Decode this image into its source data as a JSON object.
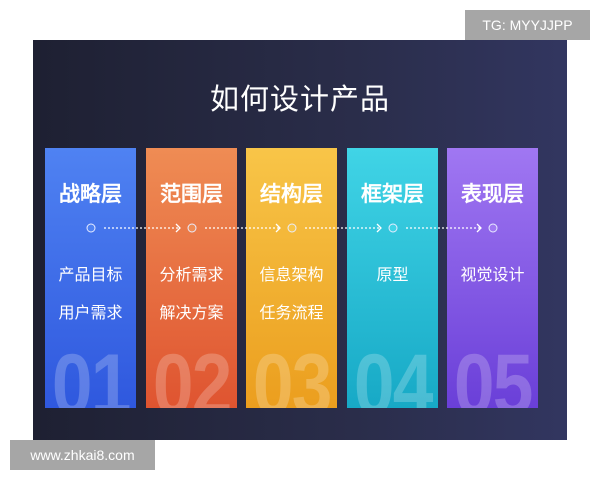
{
  "title": "如何设计产品",
  "layers": [
    {
      "name": "战略层",
      "line1": "产品目标",
      "line2": "用户需求",
      "number": "01",
      "color_top": "#4f82f2",
      "color_bottom": "#2f58de"
    },
    {
      "name": "范围层",
      "line1": "分析需求",
      "line2": "解决方案",
      "number": "02",
      "color_top": "#ef8c54",
      "color_bottom": "#df5430"
    },
    {
      "name": "结构层",
      "line1": "信息架构",
      "line2": "任务流程",
      "number": "03",
      "color_top": "#f8c548",
      "color_bottom": "#eb9e1e"
    },
    {
      "name": "框架层",
      "line1": "原型",
      "line2": "",
      "number": "04",
      "color_top": "#40d4e6",
      "color_bottom": "#17a9c6"
    },
    {
      "name": "表现层",
      "line1": "视觉设计",
      "line2": "",
      "number": "05",
      "color_top": "#a077f2",
      "color_bottom": "#6a3fd8"
    }
  ],
  "watermarks": {
    "top_right": "TG: MYYJJPP",
    "bottom_left": "www.zhkai8.com"
  }
}
